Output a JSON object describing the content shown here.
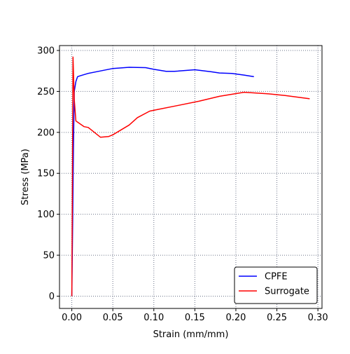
{
  "chart_data": {
    "type": "line",
    "title": "",
    "xlabel": "Strain (mm/mm)",
    "ylabel": "Stress (MPa)",
    "xlim": [
      -0.015,
      0.305
    ],
    "ylim": [
      -15,
      306
    ],
    "xticks": [
      0.0,
      0.05,
      0.1,
      0.15,
      0.2,
      0.25,
      0.3
    ],
    "xtick_labels": [
      "0.00",
      "0.05",
      "0.10",
      "0.15",
      "0.20",
      "0.25",
      "0.30"
    ],
    "yticks": [
      0,
      50,
      100,
      150,
      200,
      250,
      300
    ],
    "ytick_labels": [
      "0",
      "50",
      "100",
      "150",
      "200",
      "250",
      "300"
    ],
    "grid": true,
    "legend_position": "lower-right",
    "series": [
      {
        "name": "CPFE",
        "color": "#0000ff",
        "x": [
          0.0,
          0.001,
          0.002,
          0.003,
          0.005,
          0.007,
          0.01,
          0.02,
          0.035,
          0.05,
          0.07,
          0.09,
          0.1,
          0.115,
          0.125,
          0.15,
          0.17,
          0.18,
          0.195,
          0.21,
          0.222
        ],
        "y": [
          0,
          90,
          180,
          250,
          262,
          268,
          269,
          272,
          275,
          278,
          279.5,
          279,
          277,
          274.5,
          274.5,
          276.5,
          274,
          272.5,
          272,
          270,
          268
        ]
      },
      {
        "name": "Surrogate",
        "color": "#ff0000",
        "x": [
          0.0,
          0.0005,
          0.001,
          0.0015,
          0.003,
          0.005,
          0.015,
          0.02,
          0.035,
          0.045,
          0.05,
          0.06,
          0.07,
          0.08,
          0.095,
          0.105,
          0.13,
          0.155,
          0.18,
          0.21,
          0.24,
          0.26,
          0.29
        ],
        "y": [
          0,
          100,
          200,
          292,
          240,
          214,
          207,
          206,
          194,
          195,
          197,
          203,
          209,
          218,
          226,
          228,
          233,
          238,
          244,
          249,
          247,
          245,
          241
        ]
      }
    ]
  }
}
